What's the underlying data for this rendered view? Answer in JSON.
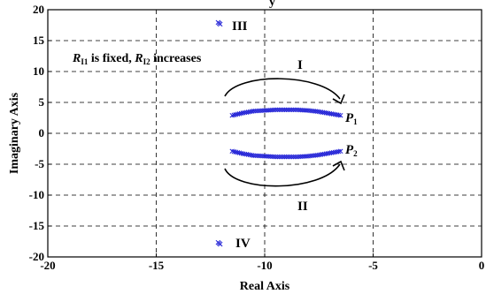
{
  "chart_data": {
    "type": "scatter",
    "title": "",
    "xlabel": "Real Axis",
    "ylabel": "Imaginary Axis",
    "xlim": [
      -20,
      0
    ],
    "ylim": [
      -20,
      20
    ],
    "x_ticks": [
      -20,
      -15,
      -10,
      -5,
      0
    ],
    "y_ticks": [
      20,
      15,
      10,
      5,
      0,
      -5,
      -10,
      -15,
      -20
    ],
    "grid": true,
    "grid_style": "dashed",
    "marker": "x",
    "color": "#1f1fd6",
    "series": [
      {
        "x": [
          -11.5,
          -11.0,
          -10.5,
          -10.0,
          -9.5,
          -9.0,
          -8.5,
          -8.0,
          -7.5,
          -7.0,
          -6.5
        ],
        "y": [
          2.9,
          3.3,
          3.6,
          3.7,
          3.8,
          3.8,
          3.8,
          3.7,
          3.5,
          3.2,
          2.9
        ]
      },
      {
        "x": [
          -11.5,
          -11.0,
          -10.5,
          -10.0,
          -9.5,
          -9.0,
          -8.5,
          -8.0,
          -7.5,
          -7.0,
          -6.5
        ],
        "y": [
          -2.9,
          -3.3,
          -3.6,
          -3.7,
          -3.8,
          -3.8,
          -3.8,
          -3.7,
          -3.5,
          -3.2,
          -2.9
        ]
      },
      {
        "x": [
          -12.1
        ],
        "y": [
          17.8
        ]
      },
      {
        "x": [
          -12.1
        ],
        "y": [
          -17.8
        ]
      }
    ],
    "annotations": {
      "region_I": "I",
      "region_II": "II",
      "region_III": "III",
      "region_IV": "IV",
      "p1_base": "P",
      "p1_sub": "1",
      "p2_base": "P",
      "p2_sub": "2",
      "note": {
        "r1": "R",
        "r1_sub": "I1",
        "middle": " is fixed, ",
        "r2": "R",
        "r2_sub": "I2",
        "end": " increases"
      }
    },
    "top_text_fragment": "y"
  }
}
